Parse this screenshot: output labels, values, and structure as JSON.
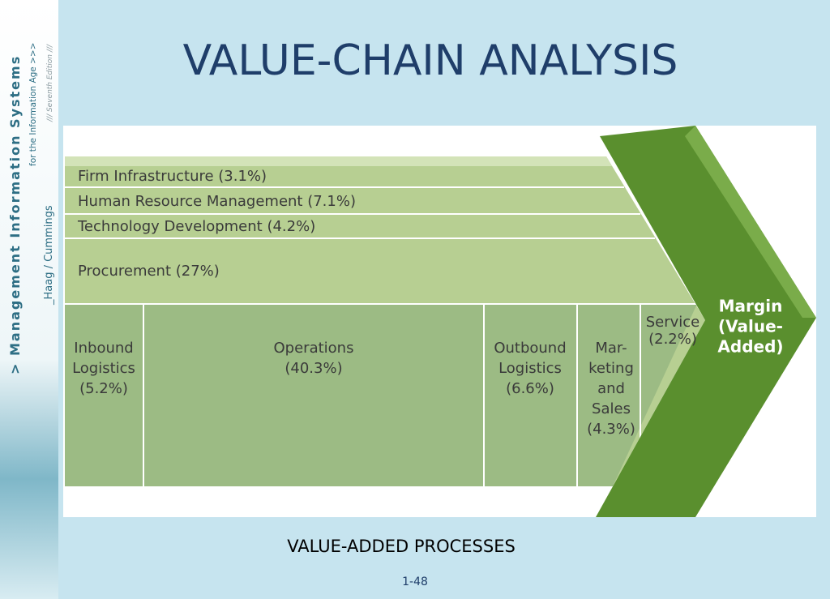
{
  "sidebar": {
    "series_title": "> Management Information Systems",
    "subtitle": "for the Information Age >>>",
    "edition": "/// Seventh Edition ///",
    "authors": "_Haag / Cummings"
  },
  "header": {
    "title": "VALUE-CHAIN ANALYSIS"
  },
  "diagram": {
    "support_activities": [
      "Firm Infrastructure (3.1%)",
      "Human Resource Management (7.1%)",
      "Technology Development (4.2%)",
      "Procurement (27%)"
    ],
    "primary_activities": [
      {
        "lines": [
          "Inbound",
          "Logistics",
          "(5.2%)"
        ]
      },
      {
        "lines": [
          "Operations",
          "(40.3%)"
        ]
      },
      {
        "lines": [
          "Outbound",
          "Logistics",
          "(6.6%)"
        ]
      },
      {
        "lines": [
          "Mar-",
          "keting",
          "and",
          "Sales",
          "(4.3%)"
        ]
      },
      {
        "lines": [
          "Service",
          "(2.2%)"
        ]
      }
    ],
    "margin": {
      "lines": [
        "Margin",
        "(Value-",
        "Added)"
      ]
    }
  },
  "caption": "VALUE-ADDED PROCESSES",
  "page_number": "1-48"
}
